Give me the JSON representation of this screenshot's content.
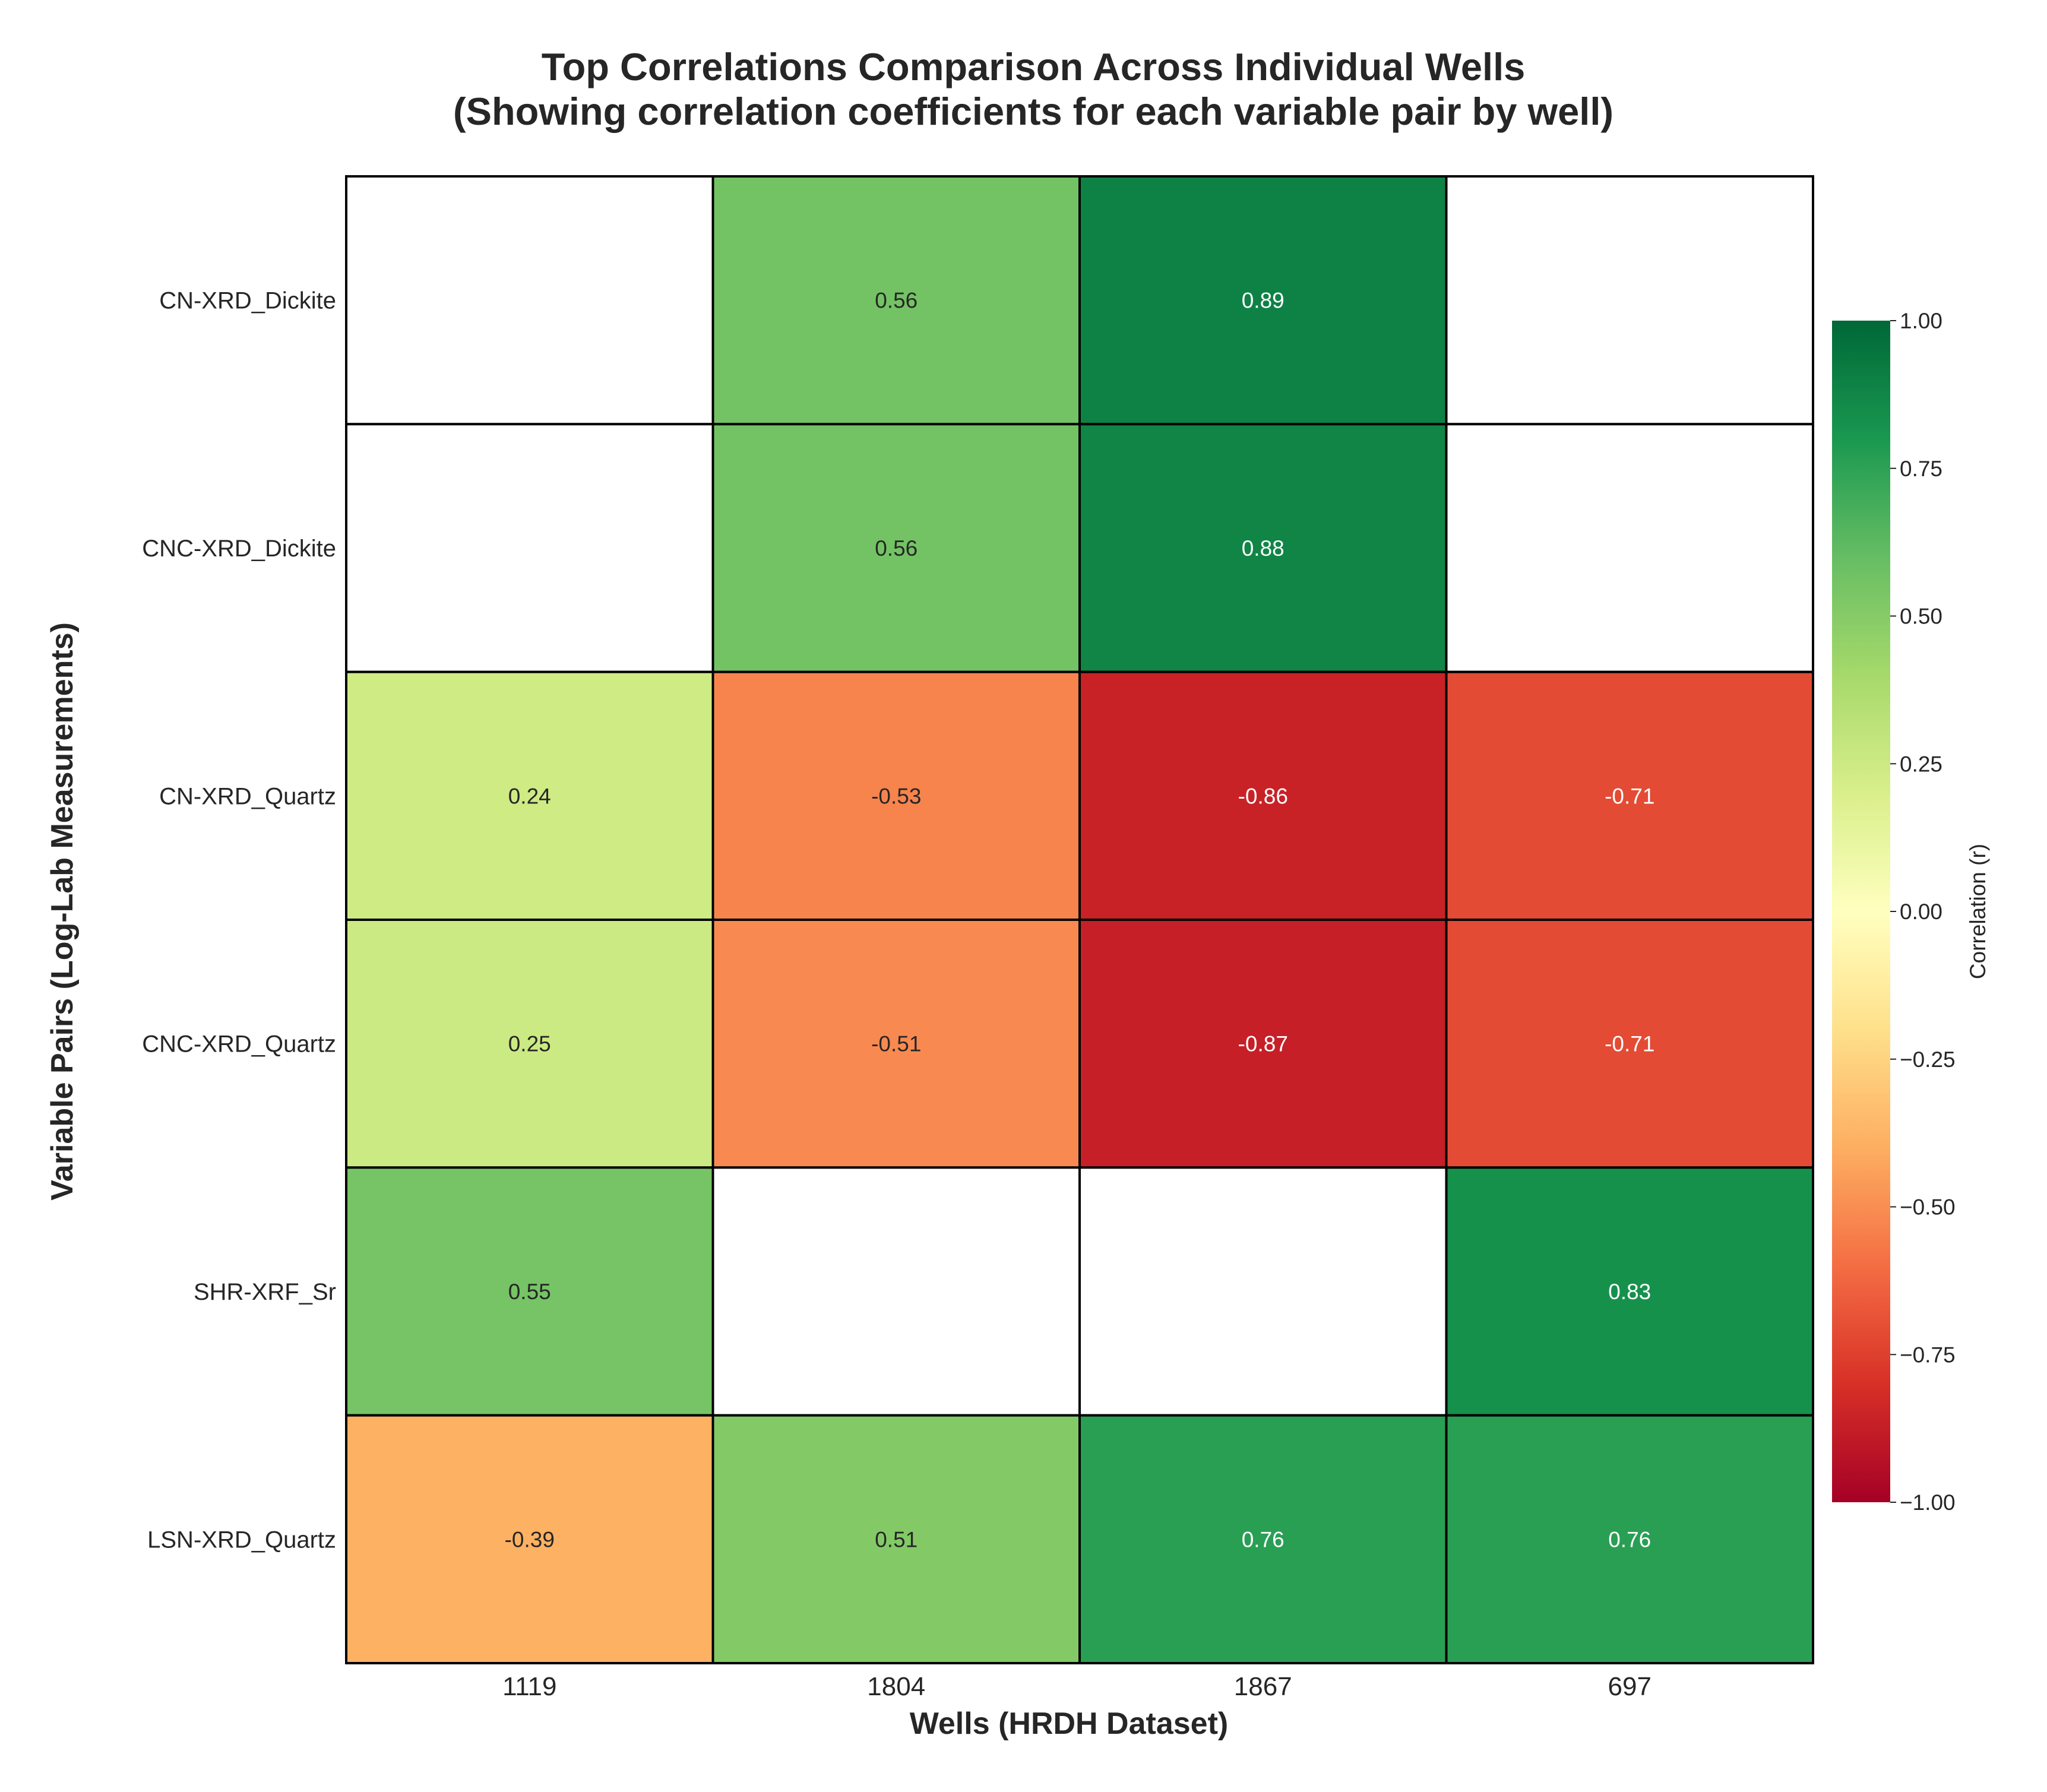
{
  "chart_data": {
    "type": "heatmap",
    "title": "Top Correlations Comparison Across Individual Wells",
    "subtitle": "(Showing correlation coefficients for each variable pair by well)",
    "xlabel": "Wells (HRDH Dataset)",
    "ylabel": "Variable Pairs (Log-Lab Measurements)",
    "columns": [
      "1119",
      "1804",
      "1867",
      "697"
    ],
    "rows": [
      "CN-XRD_Dickite",
      "CNC-XRD_Dickite",
      "CN-XRD_Quartz",
      "CNC-XRD_Quartz",
      "SHR-XRF_Sr",
      "LSN-XRD_Quartz"
    ],
    "values": [
      [
        null,
        0.56,
        0.89,
        null
      ],
      [
        null,
        0.56,
        0.88,
        null
      ],
      [
        0.24,
        -0.53,
        -0.86,
        -0.71
      ],
      [
        0.25,
        -0.51,
        -0.87,
        -0.71
      ],
      [
        0.55,
        null,
        null,
        0.83
      ],
      [
        -0.39,
        0.51,
        0.76,
        0.76
      ]
    ],
    "labels": [
      [
        "",
        "0.56",
        "0.89",
        ""
      ],
      [
        "",
        "0.56",
        "0.88",
        ""
      ],
      [
        "0.24",
        "-0.53",
        "-0.86",
        "-0.71"
      ],
      [
        "0.25",
        "-0.51",
        "-0.87",
        "-0.71"
      ],
      [
        "0.55",
        "",
        "",
        "0.83"
      ],
      [
        "-0.39",
        "0.51",
        "0.76",
        "0.76"
      ]
    ],
    "colormap": "RdYlGn",
    "vmin": -1.0,
    "vmax": 1.0,
    "colorbar": {
      "label": "Correlation (r)",
      "ticks": [
        1.0,
        0.75,
        0.5,
        0.25,
        0.0,
        -0.25,
        -0.5,
        -0.75,
        -1.0
      ],
      "tick_labels": [
        "1.00",
        "0.75",
        "0.50",
        "0.25",
        "0.00",
        "−0.25",
        "−0.50",
        "−0.75",
        "−1.00"
      ],
      "placement": "right"
    },
    "missing_cell_color": "#ffffff",
    "grid": false
  }
}
